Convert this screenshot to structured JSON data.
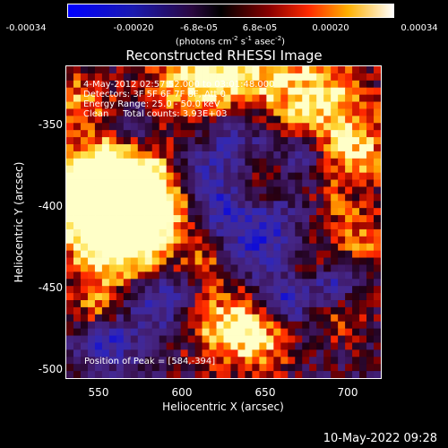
{
  "colorbar": {
    "ticks": [
      "-0.00034",
      "-0.00020",
      "-6.8e-05",
      "6.8e-05",
      "0.00020",
      "0.00034"
    ],
    "units_main": "(photons cm",
    "units_e1": "-2",
    "units_mid": " s",
    "units_e2": "-1",
    "units_mid2": " asec",
    "units_e3": "-2",
    "units_end": ")"
  },
  "title": "Reconstructed RHESSI Image",
  "info": {
    "time_range": "4-May-2012 02:57:52.000 to 03:01:48.000",
    "detectors": "Detectors: 3F 5F 6F 7F 8F, Att 0",
    "energy": "Energy Range: 25.0 - 50.0 keV",
    "clean": "Clean     Total counts: 3.93E+03"
  },
  "peak": "Position of Peak = [584,-394]",
  "x_axis": {
    "label": "Heliocentric X (arcsec)",
    "ticks": [
      "550",
      "600",
      "650",
      "700"
    ]
  },
  "y_axis": {
    "label": "Heliocentric Y (arcsec)",
    "ticks": [
      "-350",
      "-400",
      "-450",
      "-500"
    ]
  },
  "timestamp": "10-May-2022 09:28"
}
